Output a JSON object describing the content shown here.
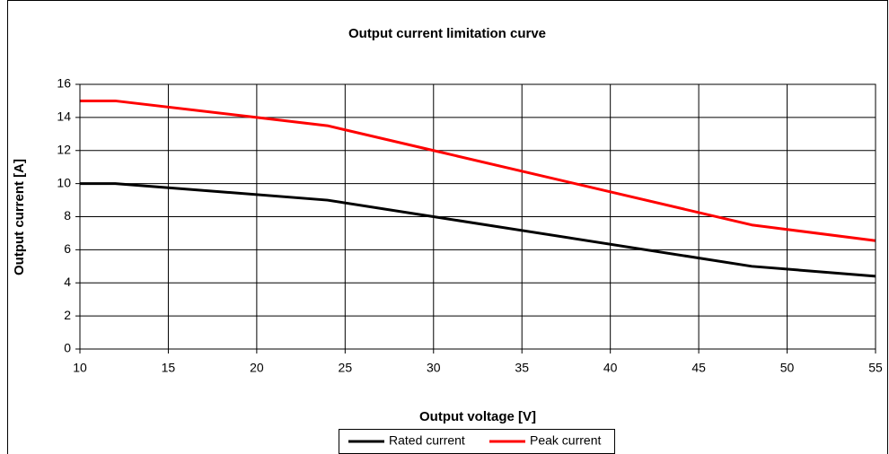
{
  "chart_data": {
    "type": "line",
    "title": "Output current limitation curve",
    "x_label": "Output voltage [V]",
    "y_label": "Output current [A]",
    "series": [
      {
        "name": "Rated current",
        "color": "#000000",
        "x": [
          10,
          12,
          24,
          30,
          48,
          55
        ],
        "values": [
          10,
          10,
          9,
          8,
          5,
          4.4
        ]
      },
      {
        "name": "Peak current",
        "color": "#ff0000",
        "x": [
          10,
          12,
          20,
          24,
          30,
          48,
          55
        ],
        "values": [
          15,
          15,
          14,
          13.5,
          12,
          7.5,
          6.55
        ]
      }
    ],
    "xlim": [
      10,
      55
    ],
    "xticks": [
      10,
      15,
      20,
      25,
      30,
      35,
      40,
      45,
      50,
      55
    ],
    "ylim": [
      0,
      16
    ],
    "yticks": [
      0,
      2,
      4,
      6,
      8,
      10,
      12,
      14,
      16
    ],
    "grid": true,
    "legend": "bottom"
  }
}
